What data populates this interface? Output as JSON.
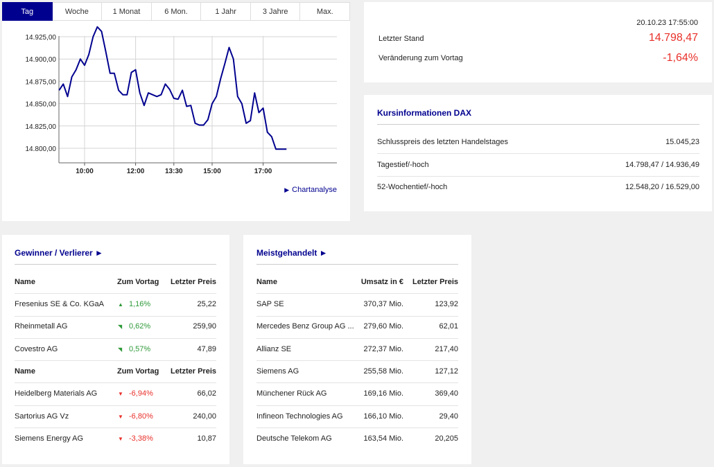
{
  "chart": {
    "tabs": [
      "Tag",
      "Woche",
      "1 Monat",
      "6 Mon.",
      "1 Jahr",
      "3 Jahre",
      "Max."
    ],
    "active_tab": 0,
    "link_label": "Chartanalyse",
    "line_color": "#00008f"
  },
  "chart_data": {
    "type": "line",
    "x_ticks": [
      "10:00",
      "12:00",
      "13:30",
      "15:00",
      "17:00"
    ],
    "y_ticks": [
      "14.925,00",
      "14.900,00",
      "14.875,00",
      "14.850,00",
      "14.825,00",
      "14.800,00"
    ],
    "ylim": [
      14790,
      14940
    ],
    "xlim": [
      "09:00",
      "17:55"
    ],
    "grid": true,
    "series": [
      {
        "x": [
          "09:00",
          "09:10",
          "09:20",
          "09:30",
          "09:40",
          "09:50",
          "10:00",
          "10:10",
          "10:20",
          "10:30",
          "10:40",
          "10:50",
          "11:00",
          "11:10",
          "11:20",
          "11:30",
          "11:40",
          "11:50",
          "12:00",
          "12:10",
          "12:20",
          "12:30",
          "12:40",
          "12:50",
          "13:00",
          "13:10",
          "13:20",
          "13:30",
          "13:40",
          "13:50",
          "14:00",
          "14:10",
          "14:20",
          "14:30",
          "14:40",
          "14:50",
          "15:00",
          "15:10",
          "15:20",
          "15:30",
          "15:40",
          "15:50",
          "16:00",
          "16:10",
          "16:20",
          "16:30",
          "16:40",
          "16:50",
          "17:00",
          "17:10",
          "17:20",
          "17:30",
          "17:40",
          "17:50",
          "17:55"
        ],
        "values": [
          14865,
          14872,
          14858,
          14880,
          14888,
          14900,
          14893,
          14905,
          14925,
          14936,
          14931,
          14908,
          14884,
          14884,
          14865,
          14860,
          14860,
          14885,
          14888,
          14862,
          14848,
          14862,
          14860,
          14858,
          14860,
          14872,
          14866,
          14856,
          14855,
          14865,
          14847,
          14848,
          14828,
          14826,
          14826,
          14832,
          14850,
          14858,
          14878,
          14895,
          14913,
          14900,
          14858,
          14850,
          14828,
          14831,
          14862,
          14840,
          14845,
          14818,
          14813,
          14799,
          14799,
          14799,
          14799
        ]
      }
    ]
  },
  "quote": {
    "timestamp": "20.10.23 17:55:00",
    "last_label": "Letzter Stand",
    "last_value": "14.798,47",
    "change_label": "Veränderung zum Vortag",
    "change_value": "-1,64%",
    "value_color": "#e8302a"
  },
  "info": {
    "title": "Kursinformationen DAX",
    "rows": [
      {
        "label": "Schlusspreis des letzten Handelstages",
        "value": "15.045,23"
      },
      {
        "label": "Tagestief/-hoch",
        "value": "14.798,47 / 14.936,49"
      },
      {
        "label": "52-Wochentief/-hoch",
        "value": "12.548,20 / 16.529,00"
      }
    ]
  },
  "gainers_losers": {
    "title": "Gewinner / Verlierer ►",
    "headers": [
      "Name",
      "Zum Vortag",
      "Letzter Preis"
    ],
    "gainers": [
      {
        "name": "Fresenius SE & Co. KGaA",
        "change": "1,16%",
        "price": "25,22",
        "arrow": "▲"
      },
      {
        "name": "Rheinmetall AG",
        "change": "0,62%",
        "price": "259,90",
        "arrow": "◥"
      },
      {
        "name": "Covestro AG",
        "change": "0,57%",
        "price": "47,89",
        "arrow": "◥"
      }
    ],
    "losers": [
      {
        "name": "Heidelberg Materials AG",
        "change": "-6,94%",
        "price": "66,02",
        "arrow": "▼"
      },
      {
        "name": "Sartorius AG Vz",
        "change": "-6,80%",
        "price": "240,00",
        "arrow": "▼"
      },
      {
        "name": "Siemens Energy AG",
        "change": "-3,38%",
        "price": "10,87",
        "arrow": "▼"
      }
    ]
  },
  "most_traded": {
    "title": "Meistgehandelt ►",
    "headers": [
      "Name",
      "Umsatz in €",
      "Letzter Preis"
    ],
    "rows": [
      {
        "name": "SAP SE",
        "volume": "370,37 Mio.",
        "price": "123,92"
      },
      {
        "name": "Mercedes Benz Group AG ...",
        "volume": "279,60 Mio.",
        "price": "62,01"
      },
      {
        "name": "Allianz SE",
        "volume": "272,37 Mio.",
        "price": "217,40"
      },
      {
        "name": "Siemens AG",
        "volume": "255,58 Mio.",
        "price": "127,12"
      },
      {
        "name": "Münchener Rück AG",
        "volume": "169,16 Mio.",
        "price": "369,40"
      },
      {
        "name": "Infineon Technologies AG",
        "volume": "166,10 Mio.",
        "price": "29,40"
      },
      {
        "name": "Deutsche Telekom AG",
        "volume": "163,54 Mio.",
        "price": "20,205"
      }
    ]
  }
}
